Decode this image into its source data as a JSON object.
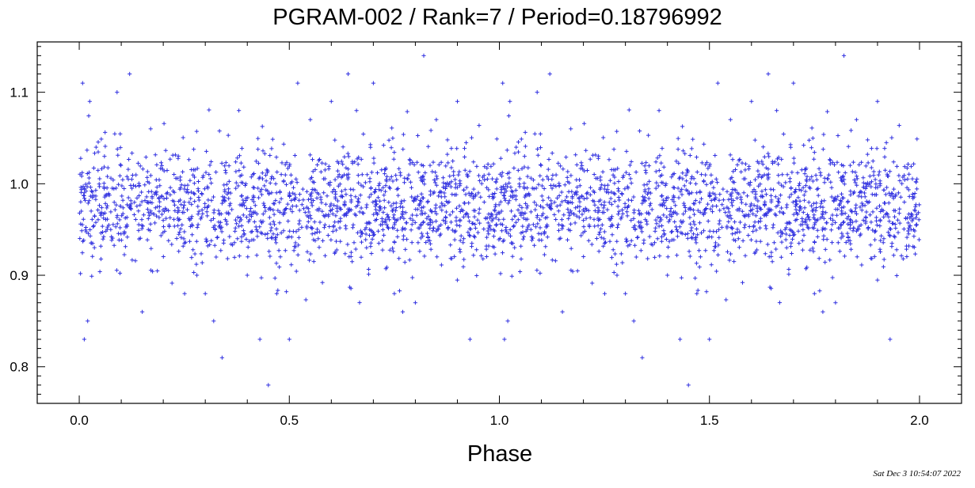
{
  "chart_data": {
    "type": "scatter",
    "title": "PGRAM-002 / Rank=7 / Period=0.18796992",
    "xlabel": "Phase",
    "ylabel": "",
    "xlim": [
      -0.1,
      2.1
    ],
    "ylim": [
      0.76,
      1.155
    ],
    "xticks": [
      0.0,
      0.5,
      1.0,
      1.5,
      2.0
    ],
    "xtick_labels": [
      "0.0",
      "0.5",
      "1.0",
      "1.5",
      "2.0"
    ],
    "yticks": [
      0.8,
      0.9,
      1.0,
      1.1
    ],
    "ytick_labels": [
      "0.8",
      "0.9",
      "1.0",
      "1.1"
    ],
    "marker": "+",
    "marker_color": "#3030e0",
    "grid": false,
    "legend": "none",
    "note": "Phase-folded light curve; each phase point in [0,1] is repeated at phase+1. Approximately 1500 points per cycle; representative extremes listed below.",
    "series": [
      {
        "values_phase_0_to_1": [
          [
            0.005,
            0.97
          ],
          [
            0.008,
            1.11
          ],
          [
            0.012,
            0.83
          ],
          [
            0.02,
            0.85
          ],
          [
            0.025,
            1.09
          ],
          [
            0.04,
            1.04
          ],
          [
            0.06,
            1.03
          ],
          [
            0.075,
            0.95
          ],
          [
            0.09,
            1.1
          ],
          [
            0.12,
            1.12
          ],
          [
            0.15,
            0.86
          ],
          [
            0.17,
            1.06
          ],
          [
            0.2,
            0.96
          ],
          [
            0.25,
            0.98
          ],
          [
            0.28,
            0.9
          ],
          [
            0.3,
            0.88
          ],
          [
            0.32,
            0.85
          ],
          [
            0.34,
            0.81
          ],
          [
            0.38,
            1.08
          ],
          [
            0.4,
            0.9
          ],
          [
            0.43,
            0.83
          ],
          [
            0.45,
            0.78
          ],
          [
            0.47,
            0.88
          ],
          [
            0.5,
            0.83
          ],
          [
            0.52,
            1.11
          ],
          [
            0.55,
            1.07
          ],
          [
            0.6,
            1.09
          ],
          [
            0.64,
            1.12
          ],
          [
            0.66,
            1.08
          ],
          [
            0.68,
            0.95
          ],
          [
            0.7,
            1.11
          ],
          [
            0.75,
            0.88
          ],
          [
            0.77,
            0.86
          ],
          [
            0.8,
            0.87
          ],
          [
            0.82,
            1.14
          ],
          [
            0.85,
            1.07
          ],
          [
            0.9,
            1.09
          ],
          [
            0.93,
            0.83
          ],
          [
            0.95,
            0.99
          ],
          [
            0.98,
            0.95
          ]
        ]
      }
    ],
    "timestamp": "Sat Dec  3 10:54:07 2022"
  }
}
